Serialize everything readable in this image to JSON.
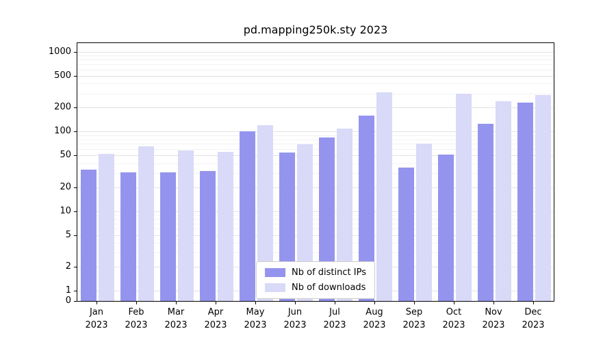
{
  "figure": {
    "title": "pd.mapping250k.sty 2023"
  },
  "chart_data": {
    "type": "bar",
    "title": "pd.mapping250k.sty 2023",
    "categories": [
      "Jan 2023",
      "Feb 2023",
      "Mar 2023",
      "Apr 2023",
      "May 2023",
      "Jun 2023",
      "Jul 2023",
      "Aug 2023",
      "Sep 2023",
      "Oct 2023",
      "Nov 2023",
      "Dec 2023"
    ],
    "series": [
      {
        "name": "Nb of distinct IPs",
        "color": "#9494ee",
        "values": [
          33,
          31,
          31,
          32,
          101,
          55,
          85,
          160,
          35,
          51,
          125,
          230
        ]
      },
      {
        "name": "Nb of downloads",
        "color": "#d9d9f8",
        "values": [
          52,
          65,
          58,
          56,
          120,
          69,
          110,
          310,
          70,
          300,
          240,
          285
        ]
      }
    ],
    "yticks": [
      0,
      1,
      2,
      5,
      10,
      20,
      50,
      100,
      200,
      500,
      1000
    ],
    "ylim": [
      0,
      1400
    ],
    "yscale": "log",
    "xlabel": "",
    "ylabel": "",
    "grid": "horizontal",
    "legend_position": "lower center",
    "colors": {
      "major_grid": "#e3e3e3",
      "minor_grid": "#f2f2f2",
      "axis": "#000000",
      "background": "#ffffff"
    }
  }
}
